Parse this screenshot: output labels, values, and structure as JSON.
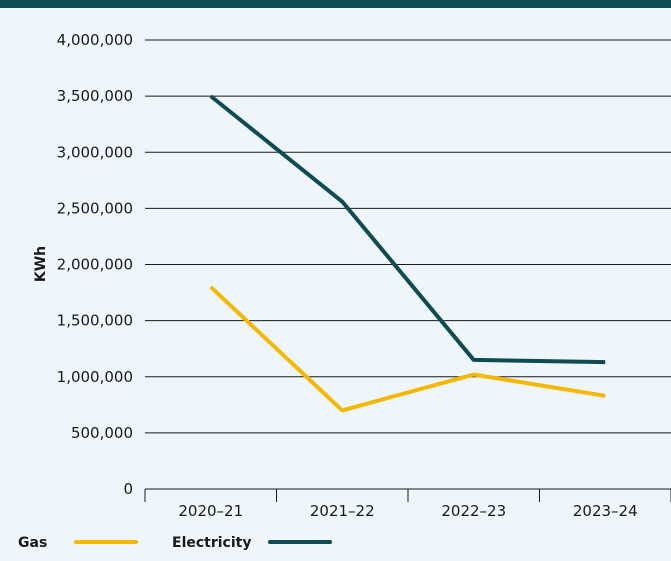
{
  "colors": {
    "background": "#eef5fb",
    "top_bar": "#0f4b52",
    "gas": "#f5b800",
    "electricity": "#0f4b52",
    "gridline": "#1a1a1a"
  },
  "chart_data": {
    "type": "line",
    "title": "",
    "xlabel": "",
    "ylabel": "KWh",
    "categories": [
      "2020–21",
      "2021–22",
      "2022–23",
      "2023–24"
    ],
    "ylim": [
      0,
      4000000
    ],
    "y_ticks": [
      0,
      500000,
      1000000,
      1500000,
      2000000,
      2500000,
      3000000,
      3500000,
      4000000
    ],
    "y_tick_labels": [
      "0",
      "500,000",
      "1,000,000",
      "1,500,000",
      "2,000,000",
      "2,500,000",
      "3,000,000",
      "3,500,000",
      "4,000,000"
    ],
    "grid": "horizontal",
    "legend_position": "bottom-left",
    "series": [
      {
        "name": "Gas",
        "color": "#f5b800",
        "values": [
          1800000,
          700000,
          1020000,
          830000
        ]
      },
      {
        "name": "Electricity",
        "color": "#0f4b52",
        "values": [
          3500000,
          2560000,
          1150000,
          1130000
        ]
      }
    ]
  }
}
